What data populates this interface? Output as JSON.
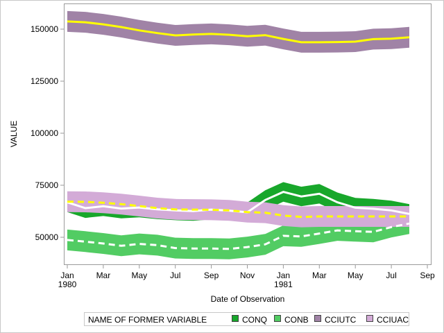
{
  "chart_data": {
    "type": "area",
    "title": "",
    "xlabel": "Date of Observation",
    "ylabel": "VALUE",
    "ylim": [
      36000,
      160000
    ],
    "xlim": [
      "1979-12-25",
      "1981-09-10"
    ],
    "grid": false,
    "x": [
      "1980-01",
      "1980-02",
      "1980-03",
      "1980-04",
      "1980-05",
      "1980-06",
      "1980-07",
      "1980-08",
      "1980-09",
      "1980-10",
      "1980-11",
      "1980-12",
      "1981-01",
      "1981-02",
      "1981-03",
      "1981-04",
      "1981-05",
      "1981-06",
      "1981-07",
      "1981-08"
    ],
    "x_ticks": [
      {
        "date": "1980-01",
        "label": "Jan",
        "sub": "1980"
      },
      {
        "date": "1980-03",
        "label": "Mar",
        "sub": ""
      },
      {
        "date": "1980-05",
        "label": "May",
        "sub": ""
      },
      {
        "date": "1980-07",
        "label": "Jul",
        "sub": ""
      },
      {
        "date": "1980-09",
        "label": "Sep",
        "sub": ""
      },
      {
        "date": "1980-11",
        "label": "Nov",
        "sub": ""
      },
      {
        "date": "1981-01",
        "label": "Jan",
        "sub": "1981"
      },
      {
        "date": "1981-03",
        "label": "Mar",
        "sub": ""
      },
      {
        "date": "1981-05",
        "label": "May",
        "sub": ""
      },
      {
        "date": "1981-07",
        "label": "Jul",
        "sub": ""
      },
      {
        "date": "1981-09",
        "label": "Sep",
        "sub": ""
      }
    ],
    "y_ticks": [
      50000,
      75000,
      100000,
      125000,
      150000
    ],
    "legend": {
      "title": "NAME OF FORMER VARIABLE",
      "placement": "bottom"
    },
    "series": [
      {
        "name": "CONQ",
        "band_color": "#18a72b",
        "line_color": "#ffffff",
        "line_style": "solid",
        "values": [
          66800,
          64000,
          64900,
          63800,
          64300,
          63400,
          62900,
          62600,
          63300,
          62800,
          62000,
          67900,
          71800,
          69600,
          70900,
          66800,
          64200,
          63700,
          62900,
          61200
        ],
        "lower": [
          62100,
          59300,
          60200,
          59100,
          59600,
          58700,
          58200,
          57900,
          58600,
          58100,
          57300,
          63200,
          67100,
          64900,
          66200,
          62100,
          59500,
          59000,
          58200,
          56500
        ],
        "upper": [
          71500,
          68700,
          69600,
          68500,
          69000,
          68100,
          67600,
          67300,
          68000,
          67500,
          66700,
          72600,
          76500,
          74300,
          75600,
          71500,
          68900,
          68400,
          67600,
          65900
        ]
      },
      {
        "name": "CONB",
        "band_color": "#52cc63",
        "line_color": "#ffffff",
        "line_style": "dashed",
        "values": [
          48700,
          47900,
          47000,
          45900,
          46800,
          46200,
          44800,
          44600,
          44600,
          44400,
          45300,
          46600,
          50700,
          50400,
          51800,
          53300,
          52900,
          52600,
          54900,
          56600
        ],
        "lower": [
          43700,
          42900,
          42000,
          40900,
          41800,
          41200,
          39800,
          39600,
          39600,
          39400,
          40300,
          41600,
          45700,
          45400,
          46800,
          48300,
          47900,
          47600,
          49900,
          51600
        ],
        "upper": [
          53700,
          52900,
          52000,
          50900,
          51800,
          51200,
          49800,
          49600,
          49600,
          49400,
          50300,
          51600,
          55700,
          55400,
          56800,
          58300,
          57900,
          57600,
          59900,
          61600
        ]
      },
      {
        "name": "CCIUTC",
        "band_color": "#a083a6",
        "line_color": "#ffff00",
        "line_style": "solid",
        "values": [
          153700,
          153300,
          152300,
          151000,
          149400,
          148100,
          147000,
          147400,
          147700,
          147300,
          146600,
          147100,
          145300,
          143700,
          143700,
          143800,
          144000,
          145200,
          145400,
          146100
        ],
        "lower": [
          148700,
          148300,
          147300,
          146000,
          144400,
          143100,
          142000,
          142400,
          142700,
          142300,
          141600,
          142100,
          140300,
          138700,
          138700,
          138800,
          139000,
          140200,
          140400,
          141100
        ],
        "upper": [
          158700,
          158300,
          157300,
          156000,
          154400,
          153100,
          152000,
          152400,
          152700,
          152300,
          151600,
          152100,
          150300,
          148700,
          148700,
          148800,
          149000,
          150200,
          150400,
          151100
        ]
      },
      {
        "name": "CCIUAC",
        "band_color": "#d3abd7",
        "line_color": "#ffff00",
        "line_style": "dashed",
        "values": [
          67100,
          67000,
          66600,
          65900,
          65000,
          64000,
          63400,
          63300,
          63200,
          62900,
          62100,
          61800,
          60400,
          59800,
          60000,
          60000,
          60000,
          60000,
          60000,
          60000
        ],
        "lower": [
          62100,
          62000,
          61600,
          60900,
          60000,
          59000,
          58400,
          58300,
          58200,
          57900,
          57100,
          56800,
          55400,
          54800,
          55000,
          55000,
          55000,
          55000,
          55000,
          55000
        ],
        "upper": [
          72100,
          72000,
          71600,
          70900,
          70000,
          69000,
          68400,
          68300,
          68200,
          67900,
          67100,
          66800,
          65400,
          64800,
          65000,
          65000,
          65000,
          65000,
          65000,
          65000
        ]
      }
    ]
  }
}
